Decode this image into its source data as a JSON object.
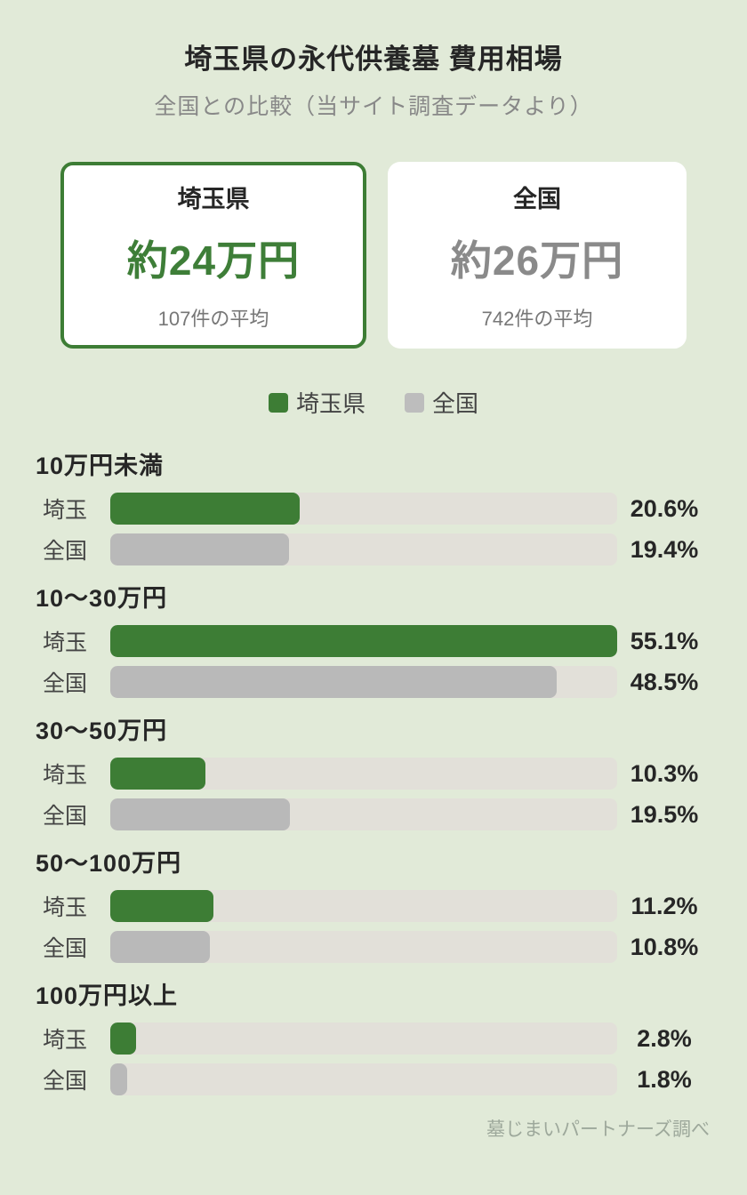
{
  "header": {
    "title": "埼玉県の永代供養墓 費用相場",
    "subtitle": "全国との比較（当サイト調査データより）"
  },
  "summary_cards": [
    {
      "name": "埼玉県",
      "amount": "約24万円",
      "note": "107件の平均",
      "highlighted": true
    },
    {
      "name": "全国",
      "amount": "約26万円",
      "note": "742件の平均",
      "highlighted": false
    }
  ],
  "legend": [
    {
      "label": "埼玉県",
      "color": "#3d7d35"
    },
    {
      "label": "全国",
      "color": "#bdbdbd"
    }
  ],
  "chart_data": {
    "type": "bar",
    "orientation": "horizontal",
    "title": "埼玉県の永代供養墓 費用相場",
    "subtitle": "全国との比較（当サイト調査データより）",
    "unit": "%",
    "scale_max": 55.1,
    "categories": [
      "10万円未満",
      "10〜30万円",
      "30〜50万円",
      "50〜100万円",
      "100万円以上"
    ],
    "series": [
      {
        "name": "埼玉",
        "color": "#3d7d35",
        "values": [
          20.6,
          55.1,
          10.3,
          11.2,
          2.8
        ]
      },
      {
        "name": "全国",
        "color": "#b9b9b9",
        "values": [
          19.4,
          48.5,
          19.5,
          10.8,
          1.8
        ]
      }
    ],
    "legend_position": "top",
    "grid": false
  },
  "groups": [
    {
      "title": "10万円未満",
      "rows": [
        {
          "label": "埼玉",
          "value": 20.6,
          "value_text": "20.6%"
        },
        {
          "label": "全国",
          "value": 19.4,
          "value_text": "19.4%"
        }
      ]
    },
    {
      "title": "10〜30万円",
      "rows": [
        {
          "label": "埼玉",
          "value": 55.1,
          "value_text": "55.1%"
        },
        {
          "label": "全国",
          "value": 48.5,
          "value_text": "48.5%"
        }
      ]
    },
    {
      "title": "30〜50万円",
      "rows": [
        {
          "label": "埼玉",
          "value": 10.3,
          "value_text": "10.3%"
        },
        {
          "label": "全国",
          "value": 19.5,
          "value_text": "19.5%"
        }
      ]
    },
    {
      "title": "50〜100万円",
      "rows": [
        {
          "label": "埼玉",
          "value": 11.2,
          "value_text": "11.2%"
        },
        {
          "label": "全国",
          "value": 10.8,
          "value_text": "10.8%"
        }
      ]
    },
    {
      "title": "100万円以上",
      "rows": [
        {
          "label": "埼玉",
          "value": 2.8,
          "value_text": "2.8%"
        },
        {
          "label": "全国",
          "value": 1.8,
          "value_text": "1.8%"
        }
      ]
    }
  ],
  "footer": {
    "credit": "墓じまいパートナーズ調べ"
  },
  "colors": {
    "background": "#e1ead8",
    "card_bg": "#ffffff",
    "accent_green": "#3d7d35",
    "green_text": "#3e7e38",
    "bar_gray": "#b9b9b9",
    "legend_gray": "#bdbdbd",
    "track": "#e2e0d9",
    "text_dark": "#262626",
    "text_gray": "#888888",
    "note_gray": "#777777",
    "label_gray": "#444444",
    "footer_gray": "#9da89b"
  }
}
